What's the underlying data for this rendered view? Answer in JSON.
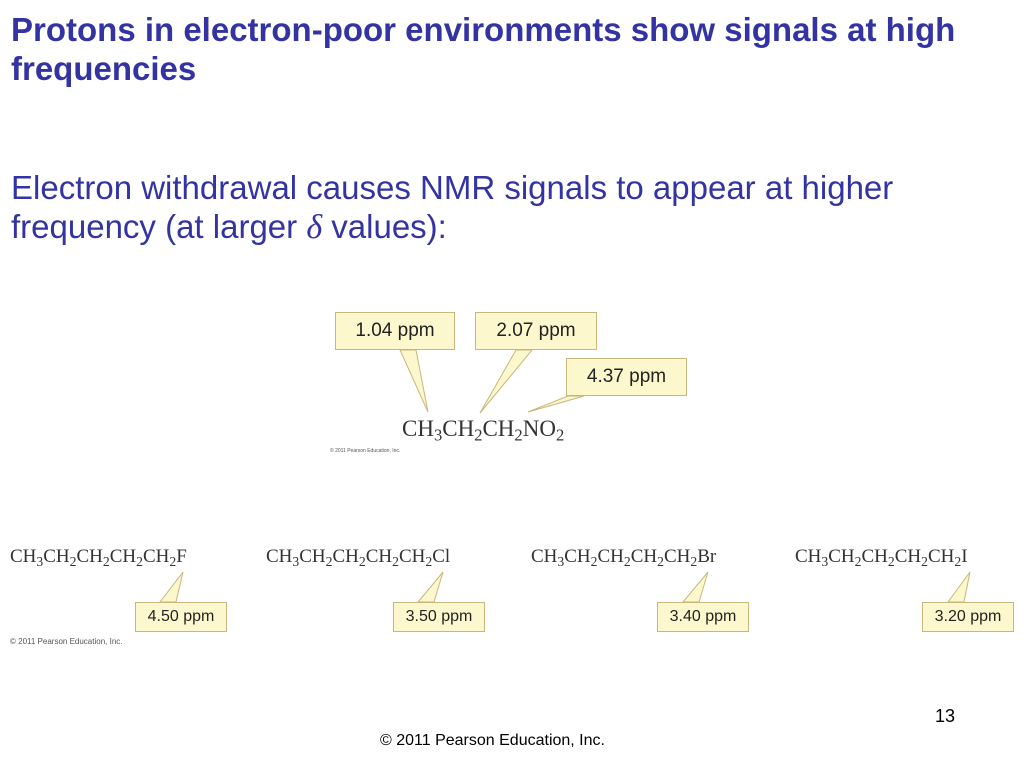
{
  "slide": {
    "heading1": "Protons in electron-poor environments show signals at high frequencies",
    "heading2_before": "Electron withdrawal causes NMR signals to appear at higher frequency (at  larger ",
    "heading2_symbol": "δ",
    "heading2_after": " values):",
    "page_number": "13",
    "footer": "© 2011 Pearson Education, Inc."
  },
  "top_figure": {
    "formula": [
      {
        "t": "CH"
      },
      {
        "s": "3"
      },
      {
        "t": "CH"
      },
      {
        "s": "2"
      },
      {
        "t": "CH"
      },
      {
        "s": "2"
      },
      {
        "t": "NO"
      },
      {
        "s": "2"
      }
    ],
    "callouts": [
      "1.04 ppm",
      "2.07 ppm",
      "4.37 ppm"
    ],
    "copyright": "© 2011 Pearson Education, Inc."
  },
  "bottom_figure": {
    "compounds": [
      {
        "formula": [
          {
            "t": "CH"
          },
          {
            "s": "3"
          },
          {
            "t": "CH"
          },
          {
            "s": "2"
          },
          {
            "t": "CH"
          },
          {
            "s": "2"
          },
          {
            "t": "CH"
          },
          {
            "s": "2"
          },
          {
            "t": "CH"
          },
          {
            "s": "2"
          },
          {
            "t": "F"
          }
        ],
        "shift": "4.50 ppm"
      },
      {
        "formula": [
          {
            "t": "CH"
          },
          {
            "s": "3"
          },
          {
            "t": "CH"
          },
          {
            "s": "2"
          },
          {
            "t": "CH"
          },
          {
            "s": "2"
          },
          {
            "t": "CH"
          },
          {
            "s": "2"
          },
          {
            "t": "CH"
          },
          {
            "s": "2"
          },
          {
            "t": "Cl"
          }
        ],
        "shift": "3.50 ppm"
      },
      {
        "formula": [
          {
            "t": "CH"
          },
          {
            "s": "3"
          },
          {
            "t": "CH"
          },
          {
            "s": "2"
          },
          {
            "t": "CH"
          },
          {
            "s": "2"
          },
          {
            "t": "CH"
          },
          {
            "s": "2"
          },
          {
            "t": "CH"
          },
          {
            "s": "2"
          },
          {
            "t": "Br"
          }
        ],
        "shift": "3.40 ppm"
      },
      {
        "formula": [
          {
            "t": "CH"
          },
          {
            "s": "3"
          },
          {
            "t": "CH"
          },
          {
            "s": "2"
          },
          {
            "t": "CH"
          },
          {
            "s": "2"
          },
          {
            "t": "CH"
          },
          {
            "s": "2"
          },
          {
            "t": "CH"
          },
          {
            "s": "2"
          },
          {
            "t": "I"
          }
        ],
        "shift": "3.20 ppm"
      }
    ],
    "copyright": "© 2011 Pearson Education, Inc."
  },
  "colors": {
    "heading": "#3333a3",
    "callout_fill": "#fdf7cd",
    "callout_border": "#c8b77a"
  }
}
